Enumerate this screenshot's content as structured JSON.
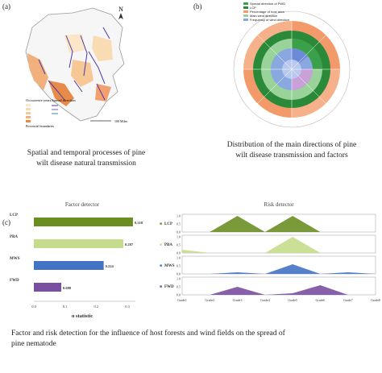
{
  "panels": {
    "a": {
      "label": "(a)",
      "compass": "N",
      "legend_title": "Occurrence years",
      "legend_sub": "Spread direction",
      "scale_text": "100 Miles",
      "legend_small": "Provincial boundaries",
      "caption_line1": "Spatial and temporal processes of pine",
      "caption_line2": "wilt disease natural transmission"
    },
    "b": {
      "label": "(b)",
      "legend": [
        {
          "text": "Spread direction of PWD",
          "color": "#3aa14a"
        },
        {
          "text": "LCP",
          "color": "#2a8a3a"
        },
        {
          "text": "Percentage of host area",
          "color": "#f39a6a"
        },
        {
          "text": "Main wind direction",
          "color": "#9ad39a"
        },
        {
          "text": "Frequency of wind direction",
          "color": "#8aa8e0"
        }
      ],
      "caption_line1": "Distribution of the main directions of pine",
      "caption_line2": "wilt disease transmission and factors"
    },
    "c": {
      "label": "(c)",
      "caption_line1": "Factor and risk detection for the influence of host forests and wind fields on the spread of",
      "caption_line2": "pine nematode"
    }
  },
  "chart_data": [
    {
      "type": "bar",
      "title": "Factor detector",
      "xlabel": "q statistic",
      "categories": [
        "LCP",
        "PBA",
        "MWS",
        "FWD"
      ],
      "values": [
        0.318,
        0.287,
        0.224,
        0.088
      ],
      "value_labels": [
        "0.318",
        "0.287",
        "0.224",
        "0.088"
      ],
      "colors": [
        "#6b8e23",
        "#c5dc8c",
        "#4472c4",
        "#7b4fa0"
      ],
      "xlim": [
        0,
        0.3
      ],
      "xticks": [
        "0.0",
        "0.1",
        "0.2",
        "0.3"
      ]
    },
    {
      "type": "area",
      "title": "Risk detector",
      "categories": [
        "Grade1",
        "Grade2",
        "Grade3",
        "Grade4",
        "Grade5",
        "Grade6",
        "Grade7",
        "Grade8"
      ],
      "series": [
        {
          "name": "LCP",
          "color": "#6b8e23",
          "values": [
            0,
            0,
            1.0,
            0,
            1.0,
            0,
            0,
            0
          ]
        },
        {
          "name": "PBA",
          "color": "#c5dc8c",
          "values": [
            0.2,
            0,
            0,
            0,
            1.0,
            0,
            0,
            0
          ]
        },
        {
          "name": "MWS",
          "color": "#4472c4",
          "values": [
            0,
            0,
            0.1,
            0,
            0.6,
            0,
            0.1,
            0
          ]
        },
        {
          "name": "FWD",
          "color": "#7b4fa0",
          "values": [
            0,
            0,
            0.5,
            0,
            0.1,
            0.6,
            0,
            0
          ]
        }
      ],
      "yticks": [
        "0.0",
        "0.5",
        "1.0"
      ],
      "ylim": [
        0,
        1
      ]
    }
  ]
}
